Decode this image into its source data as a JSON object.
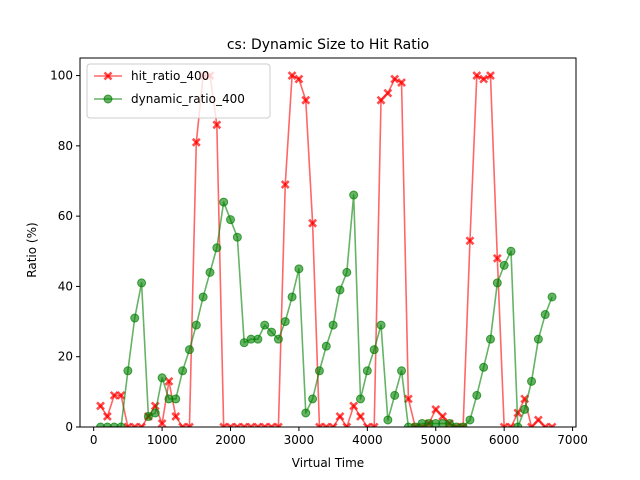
{
  "chart_data": {
    "type": "line",
    "title": "cs: Dynamic Size to Hit Ratio",
    "xlabel": "Virtual Time",
    "ylabel": "Ratio (%)",
    "xlim": [
      -200,
      7050
    ],
    "ylim": [
      0,
      105
    ],
    "x_ticks": [
      0,
      1000,
      2000,
      3000,
      4000,
      5000,
      6000,
      7000
    ],
    "y_ticks": [
      0,
      20,
      40,
      60,
      80,
      100
    ],
    "legend_position": "upper-left",
    "grid": false,
    "series": [
      {
        "name": "hit_ratio_400",
        "color": "#ff0000",
        "marker": "x",
        "x": [
          100,
          200,
          300,
          400,
          500,
          600,
          700,
          800,
          900,
          1000,
          1100,
          1200,
          1300,
          1400,
          1500,
          1600,
          1700,
          1800,
          1900,
          2000,
          2100,
          2200,
          2300,
          2400,
          2500,
          2600,
          2700,
          2800,
          2900,
          3000,
          3100,
          3200,
          3300,
          3400,
          3500,
          3600,
          3700,
          3800,
          3900,
          4000,
          4100,
          4200,
          4300,
          4400,
          4500,
          4600,
          4700,
          4800,
          4900,
          5000,
          5100,
          5200,
          5300,
          5400,
          5500,
          5600,
          5700,
          5800,
          5900,
          6000,
          6100,
          6200,
          6300,
          6400,
          6500,
          6600,
          6700
        ],
        "y": [
          6,
          3,
          9,
          9,
          0,
          0,
          0,
          3,
          6,
          1,
          13,
          3,
          0,
          0,
          81,
          100,
          100,
          86,
          0,
          0,
          0,
          0,
          0,
          0,
          0,
          0,
          0,
          69,
          100,
          99,
          93,
          58,
          0,
          0,
          0,
          3,
          0,
          6,
          3,
          0,
          0,
          93,
          95,
          99,
          98,
          8,
          0,
          0,
          1,
          5,
          3,
          1,
          0,
          0,
          53,
          100,
          99,
          100,
          48,
          0,
          0,
          4,
          8,
          0,
          2,
          0,
          0
        ]
      },
      {
        "name": "dynamic_ratio_400",
        "color": "#008000",
        "marker": "o",
        "x": [
          100,
          200,
          300,
          400,
          500,
          600,
          700,
          800,
          900,
          1000,
          1100,
          1200,
          1300,
          1400,
          1500,
          1600,
          1700,
          1800,
          1900,
          2000,
          2100,
          2200,
          2300,
          2400,
          2500,
          2600,
          2700,
          2800,
          2900,
          3000,
          3100,
          3200,
          3300,
          3400,
          3500,
          3600,
          3700,
          3800,
          3900,
          4000,
          4100,
          4200,
          4300,
          4400,
          4500,
          4600,
          4700,
          4800,
          4900,
          5000,
          5100,
          5200,
          5300,
          5400,
          5500,
          5600,
          5700,
          5800,
          5900,
          6000,
          6100,
          6200,
          6300,
          6400,
          6500,
          6600,
          6700
        ],
        "y": [
          0,
          0,
          0,
          0,
          16,
          31,
          41,
          3,
          4,
          14,
          8,
          8,
          16,
          22,
          29,
          37,
          44,
          51,
          64,
          59,
          54,
          24,
          25,
          25,
          29,
          27,
          25,
          30,
          37,
          45,
          4,
          8,
          16,
          23,
          29,
          39,
          44,
          66,
          8,
          16,
          22,
          29,
          2,
          9,
          16,
          0,
          0,
          1,
          1,
          1,
          1,
          1,
          0,
          0,
          2,
          9,
          17,
          25,
          41,
          46,
          50,
          0,
          5,
          13,
          25,
          32,
          37
        ]
      }
    ]
  }
}
